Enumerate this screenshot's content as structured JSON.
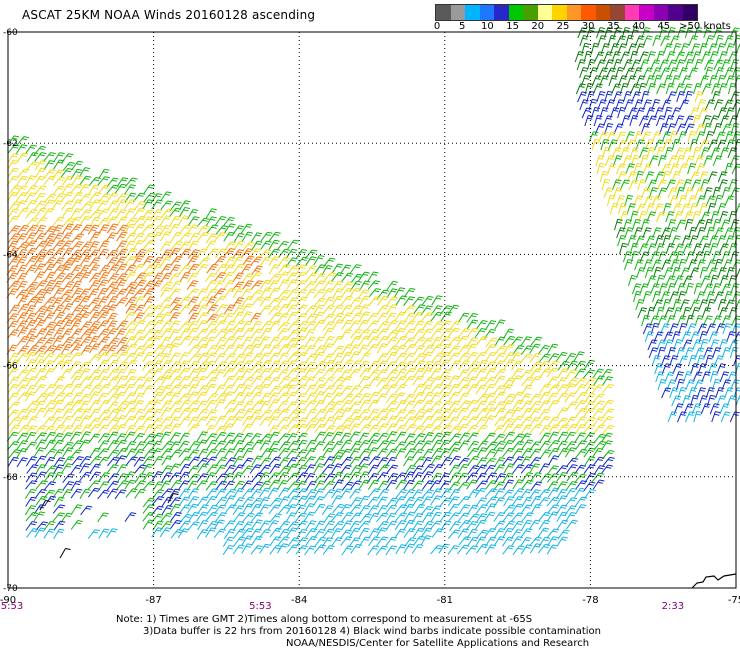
{
  "title": "ASCAT 25KM NOAA Winds 20160128 ascending",
  "legend": {
    "colors": [
      "#5a5a5a",
      "#9a9a9a",
      "#00b4ff",
      "#1e78ff",
      "#2828c8",
      "#00c800",
      "#46a000",
      "#ffff96",
      "#ffd200",
      "#ff9628",
      "#ff5a00",
      "#c85000",
      "#964632",
      "#ff3cb4",
      "#c800c8",
      "#8c00b4",
      "#50008c",
      "#320064"
    ],
    "ticks": [
      {
        "label": "0",
        "value": 0
      },
      {
        "label": "5",
        "value": 5
      },
      {
        "label": "10",
        "value": 10
      },
      {
        "label": "15",
        "value": 15
      },
      {
        "label": "20",
        "value": 20
      },
      {
        "label": "25",
        "value": 25
      },
      {
        "label": "30",
        "value": 30
      },
      {
        "label": "35",
        "value": 35
      },
      {
        "label": "40",
        "value": 40
      },
      {
        "label": "45",
        "value": 45
      },
      {
        "label": ">50 knots",
        "value": 50
      }
    ]
  },
  "axes": {
    "lon": {
      "min": -90,
      "max": -75,
      "ticks": [
        "-90",
        "-87",
        "-84",
        "-81",
        "-78",
        "-75"
      ]
    },
    "lat": {
      "min": -70,
      "max": -60,
      "ticks": [
        "-60",
        "-62",
        "-64",
        "-66",
        "-68",
        "-70"
      ]
    }
  },
  "times": [
    {
      "label": "5:53",
      "lon": -90
    },
    {
      "label": "5:53",
      "lon": -84.8
    },
    {
      "label": "2:33",
      "lon": -76.3
    }
  ],
  "notes": {
    "line1": "Note: 1) Times are GMT 2)Times along bottom correspond to measurement at -65S",
    "line2": "3)Data buffer is 22 hrs from 20160128 4) Black wind barbs indicate possible contamination",
    "line3": "NOAA/NESDIS/Center for Satellite Applications and Research"
  },
  "colors": {
    "grid": "#000000",
    "time_label": "#7a0078",
    "wind_orange": "#f07814",
    "wind_yellow": "#f0dc1e",
    "wind_green": "#14b414",
    "wind_darkgreen": "#0a7a0a",
    "wind_blue": "#1428c8",
    "wind_lightblue": "#14b4e6",
    "wind_black": "#000000"
  }
}
